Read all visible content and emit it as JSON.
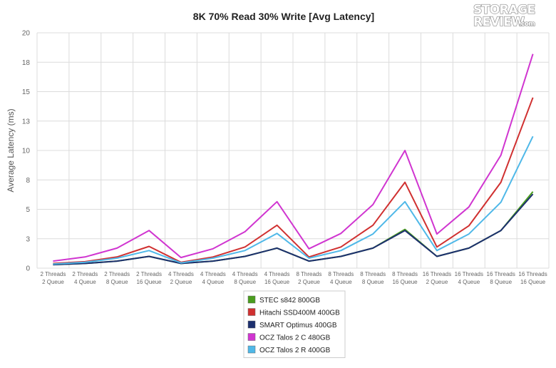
{
  "logo": {
    "line1": "STORAGE",
    "line2": "REVIEW",
    "suffix": ".com"
  },
  "chart_data": {
    "type": "line",
    "title": "8K 70% Read 30% Write [Avg Latency]",
    "xlabel": "",
    "ylabel": "Average Latency (ms)",
    "ylim": [
      0,
      20
    ],
    "yticks": [
      "0",
      "3",
      "5",
      "8",
      "10",
      "13",
      "15",
      "18",
      "20"
    ],
    "grid": true,
    "legend_position": "bottom-center",
    "categories": [
      [
        "2 Threads",
        "2 Queue"
      ],
      [
        "2 Threads",
        "4 Queue"
      ],
      [
        "2 Threads",
        "8 Queue"
      ],
      [
        "2 Threads",
        "16 Queue"
      ],
      [
        "4 Threads",
        "2 Queue"
      ],
      [
        "4 Threads",
        "4 Queue"
      ],
      [
        "4 Threads",
        "8 Queue"
      ],
      [
        "4 Threads",
        "16 Queue"
      ],
      [
        "8 Threads",
        "2 Queue"
      ],
      [
        "8 Threads",
        "4 Queue"
      ],
      [
        "8 Threads",
        "8 Queue"
      ],
      [
        "8 Threads",
        "16 Queue"
      ],
      [
        "16 Threads",
        "2 Queue"
      ],
      [
        "16 Threads",
        "4 Queue"
      ],
      [
        "16 Threads",
        "8 Queue"
      ],
      [
        "16 Threads",
        "16 Queue"
      ]
    ],
    "series": [
      {
        "name": "STEC s842 800GB",
        "color": "#4a9d1e",
        "values": [
          0.3,
          0.4,
          0.6,
          1.0,
          0.4,
          0.6,
          1.0,
          1.7,
          0.6,
          1.0,
          1.7,
          3.3,
          1.0,
          1.7,
          3.2,
          6.5
        ]
      },
      {
        "name": "Hitachi SSD400M 400GB",
        "color": "#d03030",
        "values": [
          0.4,
          0.55,
          0.95,
          1.85,
          0.5,
          0.95,
          1.8,
          3.65,
          0.95,
          1.8,
          3.65,
          7.3,
          1.8,
          3.6,
          7.3,
          14.5
        ]
      },
      {
        "name": "SMART Optimus 400GB",
        "color": "#1c2f6e",
        "values": [
          0.3,
          0.4,
          0.6,
          1.0,
          0.4,
          0.6,
          1.0,
          1.7,
          0.6,
          1.0,
          1.7,
          3.2,
          1.0,
          1.7,
          3.2,
          6.3
        ]
      },
      {
        "name": "OCZ Talos 2 C 480GB",
        "color": "#d035d0",
        "values": [
          0.6,
          0.95,
          1.7,
          3.2,
          0.9,
          1.65,
          3.1,
          5.65,
          1.65,
          2.95,
          5.4,
          10.0,
          2.9,
          5.2,
          9.6,
          18.2
        ]
      },
      {
        "name": "OCZ Talos 2 R 400GB",
        "color": "#4fb8e8",
        "values": [
          0.35,
          0.5,
          0.85,
          1.5,
          0.45,
          0.85,
          1.5,
          2.95,
          0.85,
          1.5,
          2.9,
          5.65,
          1.5,
          2.9,
          5.6,
          11.2
        ]
      }
    ]
  }
}
